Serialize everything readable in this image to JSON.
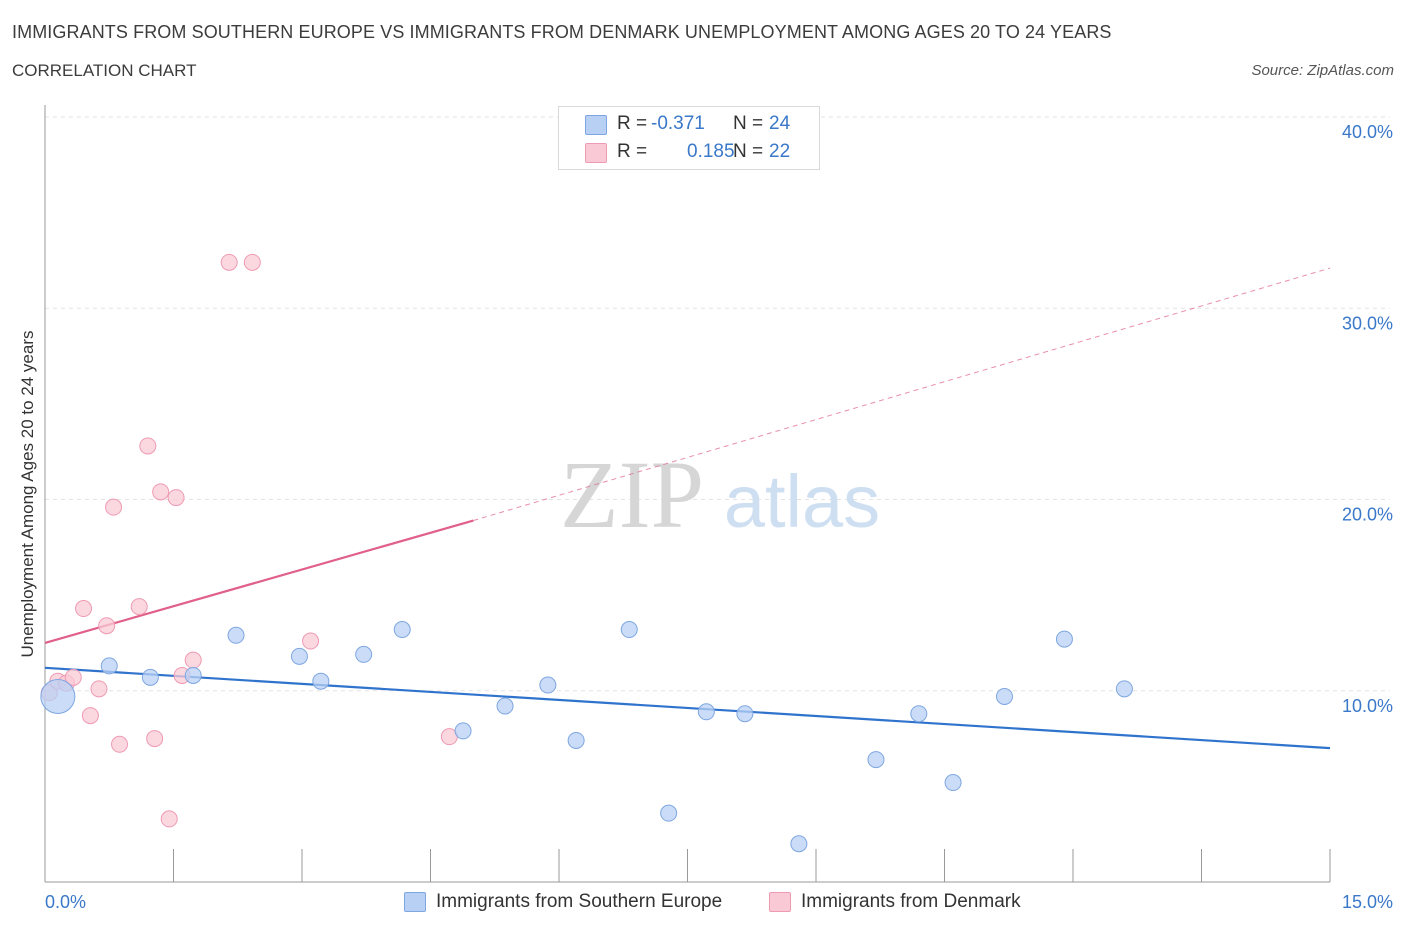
{
  "header": {
    "title": "IMMIGRANTS FROM SOUTHERN EUROPE VS IMMIGRANTS FROM DENMARK UNEMPLOYMENT AMONG AGES 20 TO 24 YEARS",
    "subtitle": "CORRELATION CHART",
    "source": "Source: ZipAtlas.com"
  },
  "watermark": {
    "zip": "ZIP",
    "atlas": "atlas"
  },
  "legend": {
    "rows": [
      {
        "r_label": "R =",
        "r_value": "-0.371",
        "n_label": "N =",
        "n_value": "24",
        "color": "#b8d0f4",
        "border": "#7ea6e0"
      },
      {
        "r_label": "R =",
        "r_value": "0.185",
        "n_label": "N =",
        "n_value": "22",
        "color": "#f9c9d6",
        "border": "#ee9ab3"
      }
    ]
  },
  "bottom_legend": {
    "series1": "Immigrants from Southern Europe",
    "series2": "Immigrants from Denmark"
  },
  "colors": {
    "blue_fill": "#b8d0f4",
    "blue_stroke": "#7ea6e0",
    "blue_line": "#2f73cc",
    "pink_fill": "#f9c9d6",
    "pink_stroke": "#ee9ab3",
    "pink_line": "#e0608a",
    "tick_text": "#3a78c9",
    "grid": "#e3e3e3"
  },
  "chart_data": {
    "type": "scatter",
    "title": "IMMIGRANTS FROM SOUTHERN EUROPE VS IMMIGRANTS FROM DENMARK UNEMPLOYMENT AMONG AGES 20 TO 24 YEARS",
    "xlabel": "",
    "ylabel": "Unemployment Among Ages 20 to 24 years",
    "xlim": [
      0,
      15
    ],
    "ylim": [
      0,
      40
    ],
    "x_tick_labels": [
      "0.0%",
      "15.0%"
    ],
    "y_ticks": [
      10,
      20,
      30,
      40
    ],
    "y_tick_labels": [
      "10.0%",
      "20.0%",
      "30.0%",
      "40.0%"
    ],
    "grid": true,
    "legend_position": "top-center",
    "series": [
      {
        "name": "Immigrants from Southern Europe",
        "r": -0.371,
        "n": 24,
        "points": [
          {
            "x": 0.15,
            "y": 9.7,
            "big": true
          },
          {
            "x": 0.75,
            "y": 11.3
          },
          {
            "x": 1.23,
            "y": 10.7
          },
          {
            "x": 1.73,
            "y": 10.8
          },
          {
            "x": 2.23,
            "y": 12.9
          },
          {
            "x": 2.97,
            "y": 11.8
          },
          {
            "x": 3.22,
            "y": 10.5
          },
          {
            "x": 3.72,
            "y": 11.9
          },
          {
            "x": 4.17,
            "y": 13.2
          },
          {
            "x": 4.88,
            "y": 7.9
          },
          {
            "x": 5.37,
            "y": 9.2
          },
          {
            "x": 5.87,
            "y": 10.3
          },
          {
            "x": 6.2,
            "y": 7.4
          },
          {
            "x": 6.82,
            "y": 13.2
          },
          {
            "x": 7.28,
            "y": 3.6
          },
          {
            "x": 7.72,
            "y": 8.9
          },
          {
            "x": 8.17,
            "y": 8.8
          },
          {
            "x": 8.8,
            "y": 2.0
          },
          {
            "x": 9.7,
            "y": 6.4
          },
          {
            "x": 10.2,
            "y": 8.8
          },
          {
            "x": 10.6,
            "y": 5.2
          },
          {
            "x": 11.2,
            "y": 9.7
          },
          {
            "x": 11.9,
            "y": 12.7
          },
          {
            "x": 12.6,
            "y": 10.1
          }
        ],
        "trend": {
          "x": [
            0,
            15
          ],
          "y": [
            11.2,
            7.0
          ]
        }
      },
      {
        "name": "Immigrants from Denmark",
        "r": 0.185,
        "n": 22,
        "points": [
          {
            "x": 0.05,
            "y": 9.9
          },
          {
            "x": 0.15,
            "y": 10.5
          },
          {
            "x": 0.25,
            "y": 10.4
          },
          {
            "x": 0.33,
            "y": 10.7
          },
          {
            "x": 0.45,
            "y": 14.3
          },
          {
            "x": 0.53,
            "y": 8.7
          },
          {
            "x": 0.63,
            "y": 10.1
          },
          {
            "x": 0.72,
            "y": 13.4
          },
          {
            "x": 0.8,
            "y": 19.6
          },
          {
            "x": 0.87,
            "y": 7.2
          },
          {
            "x": 1.1,
            "y": 14.4
          },
          {
            "x": 1.2,
            "y": 22.8
          },
          {
            "x": 1.28,
            "y": 7.5
          },
          {
            "x": 1.35,
            "y": 20.4
          },
          {
            "x": 1.45,
            "y": 3.3
          },
          {
            "x": 1.53,
            "y": 20.1
          },
          {
            "x": 1.6,
            "y": 10.8
          },
          {
            "x": 1.73,
            "y": 11.6
          },
          {
            "x": 2.15,
            "y": 32.4
          },
          {
            "x": 2.42,
            "y": 32.4
          },
          {
            "x": 3.1,
            "y": 12.6
          },
          {
            "x": 4.72,
            "y": 7.6
          }
        ],
        "trend_solid": {
          "x": [
            0,
            5.0
          ],
          "y": [
            12.5,
            18.9
          ]
        },
        "trend_dashed": {
          "x": [
            5.0,
            15
          ],
          "y": [
            18.9,
            32.1
          ]
        }
      }
    ]
  }
}
